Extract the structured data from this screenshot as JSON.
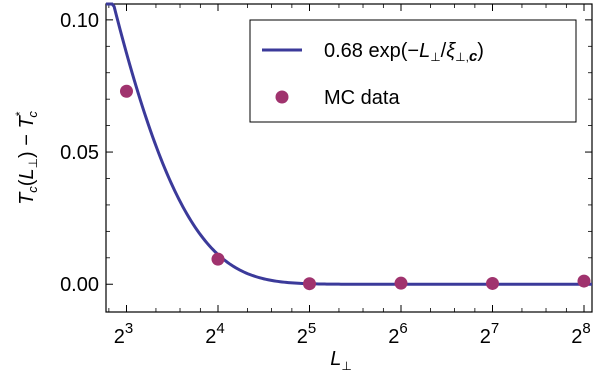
{
  "chart_data": {
    "type": "scatter",
    "x_scale": "log2",
    "xlim": [
      6.85,
      272
    ],
    "ylim": [
      -0.0105,
      0.106
    ],
    "x_ticks": [
      8,
      16,
      32,
      64,
      128,
      256
    ],
    "x_tick_labels": [
      {
        "base": "2",
        "exp": "3"
      },
      {
        "base": "2",
        "exp": "4"
      },
      {
        "base": "2",
        "exp": "5"
      },
      {
        "base": "2",
        "exp": "6"
      },
      {
        "base": "2",
        "exp": "7"
      },
      {
        "base": "2",
        "exp": "8"
      }
    ],
    "y_ticks": [
      0.0,
      0.05,
      0.1
    ],
    "y_tick_labels": [
      "0.00",
      "0.05",
      "0.10"
    ],
    "xlabel": {
      "main": "L",
      "sub": "⊥"
    },
    "ylabel": {
      "t": "T",
      "c": "c",
      "open": "(",
      "l": "L",
      "perp": "⊥",
      "close": ")",
      "minus": " − ",
      "t2": "T",
      "star": "*",
      "c2": "c"
    },
    "grid": false,
    "legend_position": "top-right",
    "series": [
      {
        "name": "0.68 exp(−L⊥/ξ⊥,c)",
        "kind": "line",
        "color": "#3b3a9a",
        "function": {
          "amplitude": 0.68,
          "decay_length": 3.9
        },
        "legend_parts": {
          "prefix": "0.68 exp(−",
          "l": "L",
          "perp": "⊥",
          "slash": "/",
          "xi": "ξ",
          "sub": "⊥,",
          "c": "c",
          "close": ")"
        }
      },
      {
        "name": "MC data",
        "kind": "scatter",
        "color": "#a0336e",
        "x": [
          8,
          16,
          32,
          64,
          128,
          256
        ],
        "y": [
          0.073,
          0.0095,
          0.0002,
          0.0004,
          0.0003,
          0.0012
        ]
      }
    ]
  }
}
